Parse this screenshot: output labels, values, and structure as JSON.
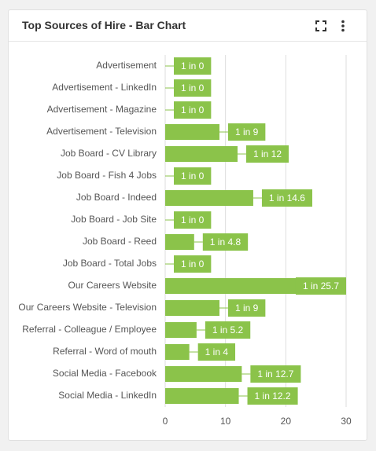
{
  "chart_data": {
    "type": "bar",
    "orientation": "horizontal",
    "title": "Top Sources of Hire - Bar Chart",
    "categories": [
      "Advertisement",
      "Advertisement - LinkedIn",
      "Advertisement - Magazine",
      "Advertisement - Television",
      "Job Board - CV Library",
      "Job Board - Fish 4 Jobs",
      "Job Board - Indeed",
      "Job Board - Job Site",
      "Job Board - Reed",
      "Job Board - Total Jobs",
      "Our Careers Website",
      "Our Careers Website - Television",
      "Referral - Colleague / Employee",
      "Referral - Word of mouth",
      "Social Media - Facebook",
      "Social Media - LinkedIn"
    ],
    "values": [
      0,
      0,
      0,
      9,
      12,
      0,
      14.6,
      0,
      4.8,
      0,
      25.7,
      9,
      5.2,
      4,
      12.7,
      12.2
    ],
    "value_labels": [
      "1 in 0",
      "1 in 0",
      "1 in 0",
      "1 in 9",
      "1 in 12",
      "1 in 0",
      "1 in 14.6",
      "1 in 0",
      "1 in 4.8",
      "1 in 0",
      "1 in 25.7",
      "1 in 9",
      "1 in 5.2",
      "1 in 4",
      "1 in 12.7",
      "1 in 12.2"
    ],
    "color": "#8bc34a",
    "xlim": [
      0,
      30
    ],
    "xticks": [
      0,
      10,
      20,
      30
    ],
    "grid": true
  }
}
